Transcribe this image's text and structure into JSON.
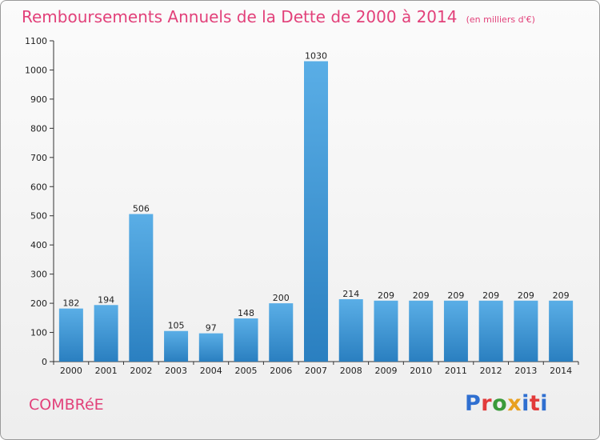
{
  "header": {
    "title": "Remboursements Annuels de la Dette de 2000 à 2014",
    "unit": "(en milliers d'€)"
  },
  "footer": {
    "commune": "COMBRéE",
    "logo_text": "Proxiti"
  },
  "colors": {
    "title": "#e2417a",
    "bar_light": "#5aaee6",
    "bar_dark": "#2a7fc0",
    "logo_letters": [
      "#2f6fd0",
      "#e23a3a",
      "#3a9a3a",
      "#e8a020",
      "#2f6fd0",
      "#e23a3a",
      "#2f6fd0"
    ]
  },
  "chart_data": {
    "type": "bar",
    "title": "Remboursements Annuels de la Dette de 2000 à 2014",
    "unit": "(en milliers d'€)",
    "categories": [
      "2000",
      "2001",
      "2002",
      "2003",
      "2004",
      "2005",
      "2006",
      "2007",
      "2008",
      "2009",
      "2010",
      "2011",
      "2012",
      "2013",
      "2014"
    ],
    "values": [
      182,
      194,
      506,
      105,
      97,
      148,
      200,
      1030,
      214,
      209,
      209,
      209,
      209,
      209,
      209
    ],
    "ylim": [
      0,
      1100
    ],
    "yticks": [
      0,
      100,
      200,
      300,
      400,
      500,
      600,
      700,
      800,
      900,
      1000,
      1100
    ],
    "grid": false,
    "legend": "none"
  }
}
